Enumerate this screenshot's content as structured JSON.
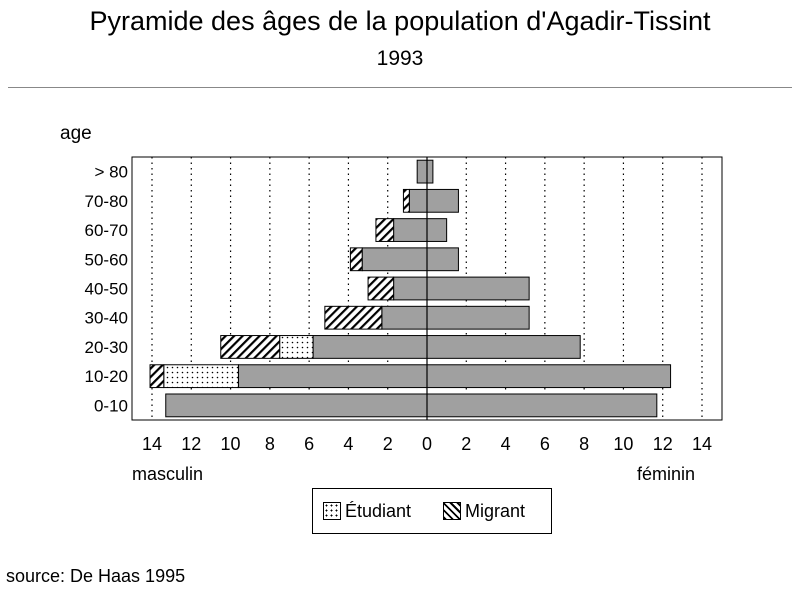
{
  "title": "Pyramide des âges de la population d'Agadir-Tissint",
  "subtitle": "1993",
  "source": "source: De Haas 1995",
  "colors": {
    "resident": "#a0a0a0",
    "grid": "#000000"
  },
  "chart_data": {
    "type": "bar",
    "orientation": "horizontal",
    "ylabel": "age",
    "xlabel_left": "masculin",
    "xlabel_right": "féminin",
    "xlim": [
      -14,
      14
    ],
    "x_ticks": [
      -14,
      -12,
      -10,
      -8,
      -6,
      -4,
      -2,
      0,
      2,
      4,
      6,
      8,
      10,
      12,
      14
    ],
    "x_tick_labels": [
      "14",
      "12",
      "10",
      "8",
      "6",
      "4",
      "2",
      "0",
      "2",
      "4",
      "6",
      "8",
      "10",
      "12",
      "14"
    ],
    "grid": true,
    "categories": [
      "> 80",
      "70-80",
      "60-70",
      "50-60",
      "40-50",
      "30-40",
      "20-30",
      "10-20",
      "0-10"
    ],
    "male": {
      "resident": [
        0.5,
        0.9,
        1.7,
        3.3,
        1.7,
        2.3,
        5.8,
        9.6,
        13.3
      ],
      "etudiant": [
        0,
        0,
        0,
        0,
        0,
        0,
        1.7,
        3.8,
        0
      ],
      "migrant": [
        0,
        0.3,
        0.9,
        0.6,
        1.3,
        2.9,
        3.0,
        0.7,
        0
      ]
    },
    "female": {
      "resident": [
        0.3,
        1.6,
        1.0,
        1.6,
        5.2,
        5.2,
        7.8,
        12.4,
        11.7
      ]
    },
    "legend": {
      "position": "bottom-center",
      "items": [
        {
          "label": "Étudiant",
          "pattern": "dots"
        },
        {
          "label": "Migrant",
          "pattern": "hatch"
        }
      ]
    }
  }
}
